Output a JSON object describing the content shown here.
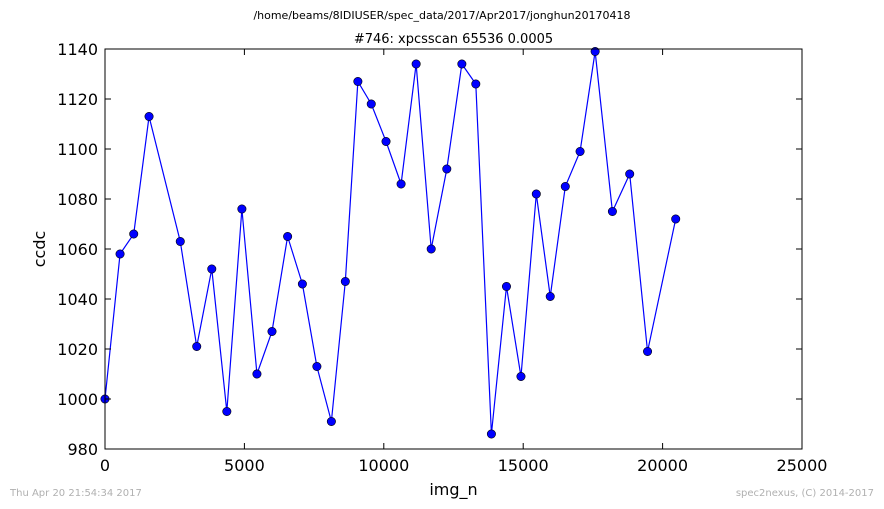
{
  "supertitle": "/home/beams/8IDIUSER/spec_data/2017/Apr2017/jonghun20170418",
  "footer": {
    "timestamp": "Thu Apr 20 21:54:34 2017",
    "credit": "spec2nexus, (C) 2014-2017"
  },
  "chart_data": {
    "type": "line",
    "title": "#746: xpcsscan 65536 0.0005",
    "xlabel": "img_n",
    "ylabel": "ccdc",
    "xlim": [
      0,
      25000
    ],
    "ylim": [
      980,
      1140
    ],
    "xticks": [
      0,
      5000,
      10000,
      15000,
      20000,
      25000
    ],
    "yticks": [
      980,
      1000,
      1020,
      1040,
      1060,
      1080,
      1100,
      1120,
      1140
    ],
    "grid": false,
    "line_color": "#0000ff",
    "marker": "circle",
    "series": [
      {
        "x": [
          0,
          540,
          1030,
          1580,
          2700,
          3290,
          3830,
          4370,
          4910,
          5450,
          5990,
          6550,
          7080,
          7600,
          8120,
          8620,
          9070,
          9550,
          10080,
          10620,
          11160,
          11700,
          12260,
          12800,
          13300,
          13860,
          14400,
          14920,
          15470,
          15970,
          16510,
          17040,
          17580,
          18200,
          18820,
          19460,
          20470
        ],
        "y": [
          1000,
          1058,
          1066,
          1113,
          1063,
          1021,
          1052,
          995,
          1076,
          1010,
          1027,
          1065,
          1046,
          1013,
          991,
          1047,
          1127,
          1118,
          1103,
          1086,
          1134,
          1060,
          1092,
          1134,
          1126,
          986,
          1045,
          1009,
          1082,
          1041,
          1085,
          1099,
          1139,
          1075,
          1090,
          1019,
          1072
        ]
      }
    ]
  }
}
